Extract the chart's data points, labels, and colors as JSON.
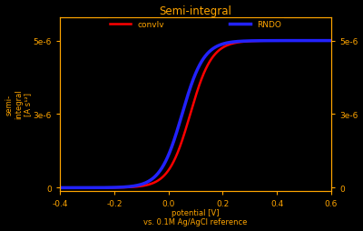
{
  "title": "Semi-integral",
  "xlabel": "potential [V]\nvs. 0.1M Ag/AgCl reference",
  "ylabel": "semi-\nintegral\n[A s¹²]",
  "xlim": [
    -0.4,
    0.6
  ],
  "ylim": [
    -1e-07,
    5.8e-06
  ],
  "xticks": [
    -0.4,
    -0.2,
    0.0,
    0.2,
    0.4,
    0.6
  ],
  "background_color": "#000000",
  "line1_color": "#FF0000",
  "line1_label": "convlv",
  "line2_color": "#2222FF",
  "line2_label": "RNDO",
  "title_color": "#FFA500",
  "label_color": "#FFA500",
  "tick_color": "#FFA500",
  "E0_1": 0.08,
  "E0_2": 0.05,
  "sigmoid_scale": 0.04,
  "y_max": 5e-06,
  "y_min": 0.0,
  "ytick_vals": [
    0.0,
    2.5e-06,
    5e-06
  ],
  "right_ytick_vals": [
    0.0,
    2.5e-06,
    5e-06
  ]
}
